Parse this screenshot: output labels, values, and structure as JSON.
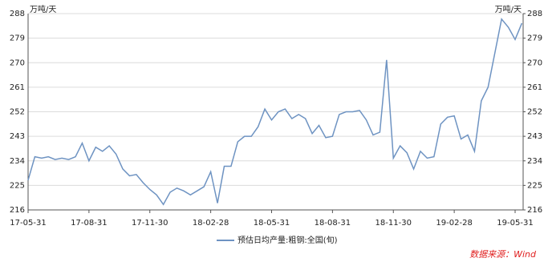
{
  "chart_data": {
    "type": "line",
    "categories": [
      "17-05-31",
      null,
      null,
      null,
      null,
      null,
      null,
      null,
      null,
      "17-08-31",
      null,
      null,
      null,
      null,
      null,
      null,
      null,
      null,
      "17-11-30",
      null,
      null,
      null,
      null,
      null,
      null,
      null,
      null,
      "18-02-28",
      null,
      null,
      null,
      null,
      null,
      null,
      null,
      null,
      "18-05-31",
      null,
      null,
      null,
      null,
      null,
      null,
      null,
      null,
      "18-08-31",
      null,
      null,
      null,
      null,
      null,
      null,
      null,
      null,
      "18-11-30",
      null,
      null,
      null,
      null,
      null,
      null,
      null,
      null,
      "19-02-28",
      null,
      null,
      null,
      null,
      null,
      null,
      null,
      null,
      "19-05-31",
      null
    ],
    "series": [
      {
        "name": "预估日均产量:粗钢:全国(旬)",
        "color": "#6e93c2",
        "values": [
          226.9,
          235.5,
          235,
          235.5,
          234.5,
          235,
          234.5,
          235.5,
          240.5,
          234,
          239,
          237.5,
          239.5,
          236.5,
          231,
          228.5,
          229,
          226,
          223.5,
          221.5,
          218,
          222.5,
          224,
          223,
          221.5,
          223,
          224.5,
          230,
          218.5,
          232,
          232,
          241,
          243,
          243,
          246.5,
          253,
          249,
          252,
          253,
          249.5,
          251,
          249.5,
          244,
          247,
          242.5,
          243,
          251,
          252,
          252,
          252.5,
          249,
          243.5,
          244.5,
          271,
          235,
          239.5,
          237,
          231,
          237.5,
          235,
          235.5,
          247.5,
          250,
          250.5,
          242,
          243.5,
          237.5,
          256,
          261,
          273.5,
          286,
          283,
          278.5,
          284.5
        ]
      }
    ],
    "ylim": [
      216,
      288
    ],
    "yticks": [
      216,
      225,
      234,
      243,
      252,
      261,
      270,
      279,
      288
    ],
    "y2lim": [
      216,
      288
    ],
    "y2ticks": [
      216,
      225,
      234,
      243,
      252,
      261,
      270,
      279,
      288
    ],
    "ylabel": "万吨/天",
    "y2label": "万吨/天",
    "grid": true,
    "legend": "bottom",
    "source": "数据来源：Wind"
  }
}
